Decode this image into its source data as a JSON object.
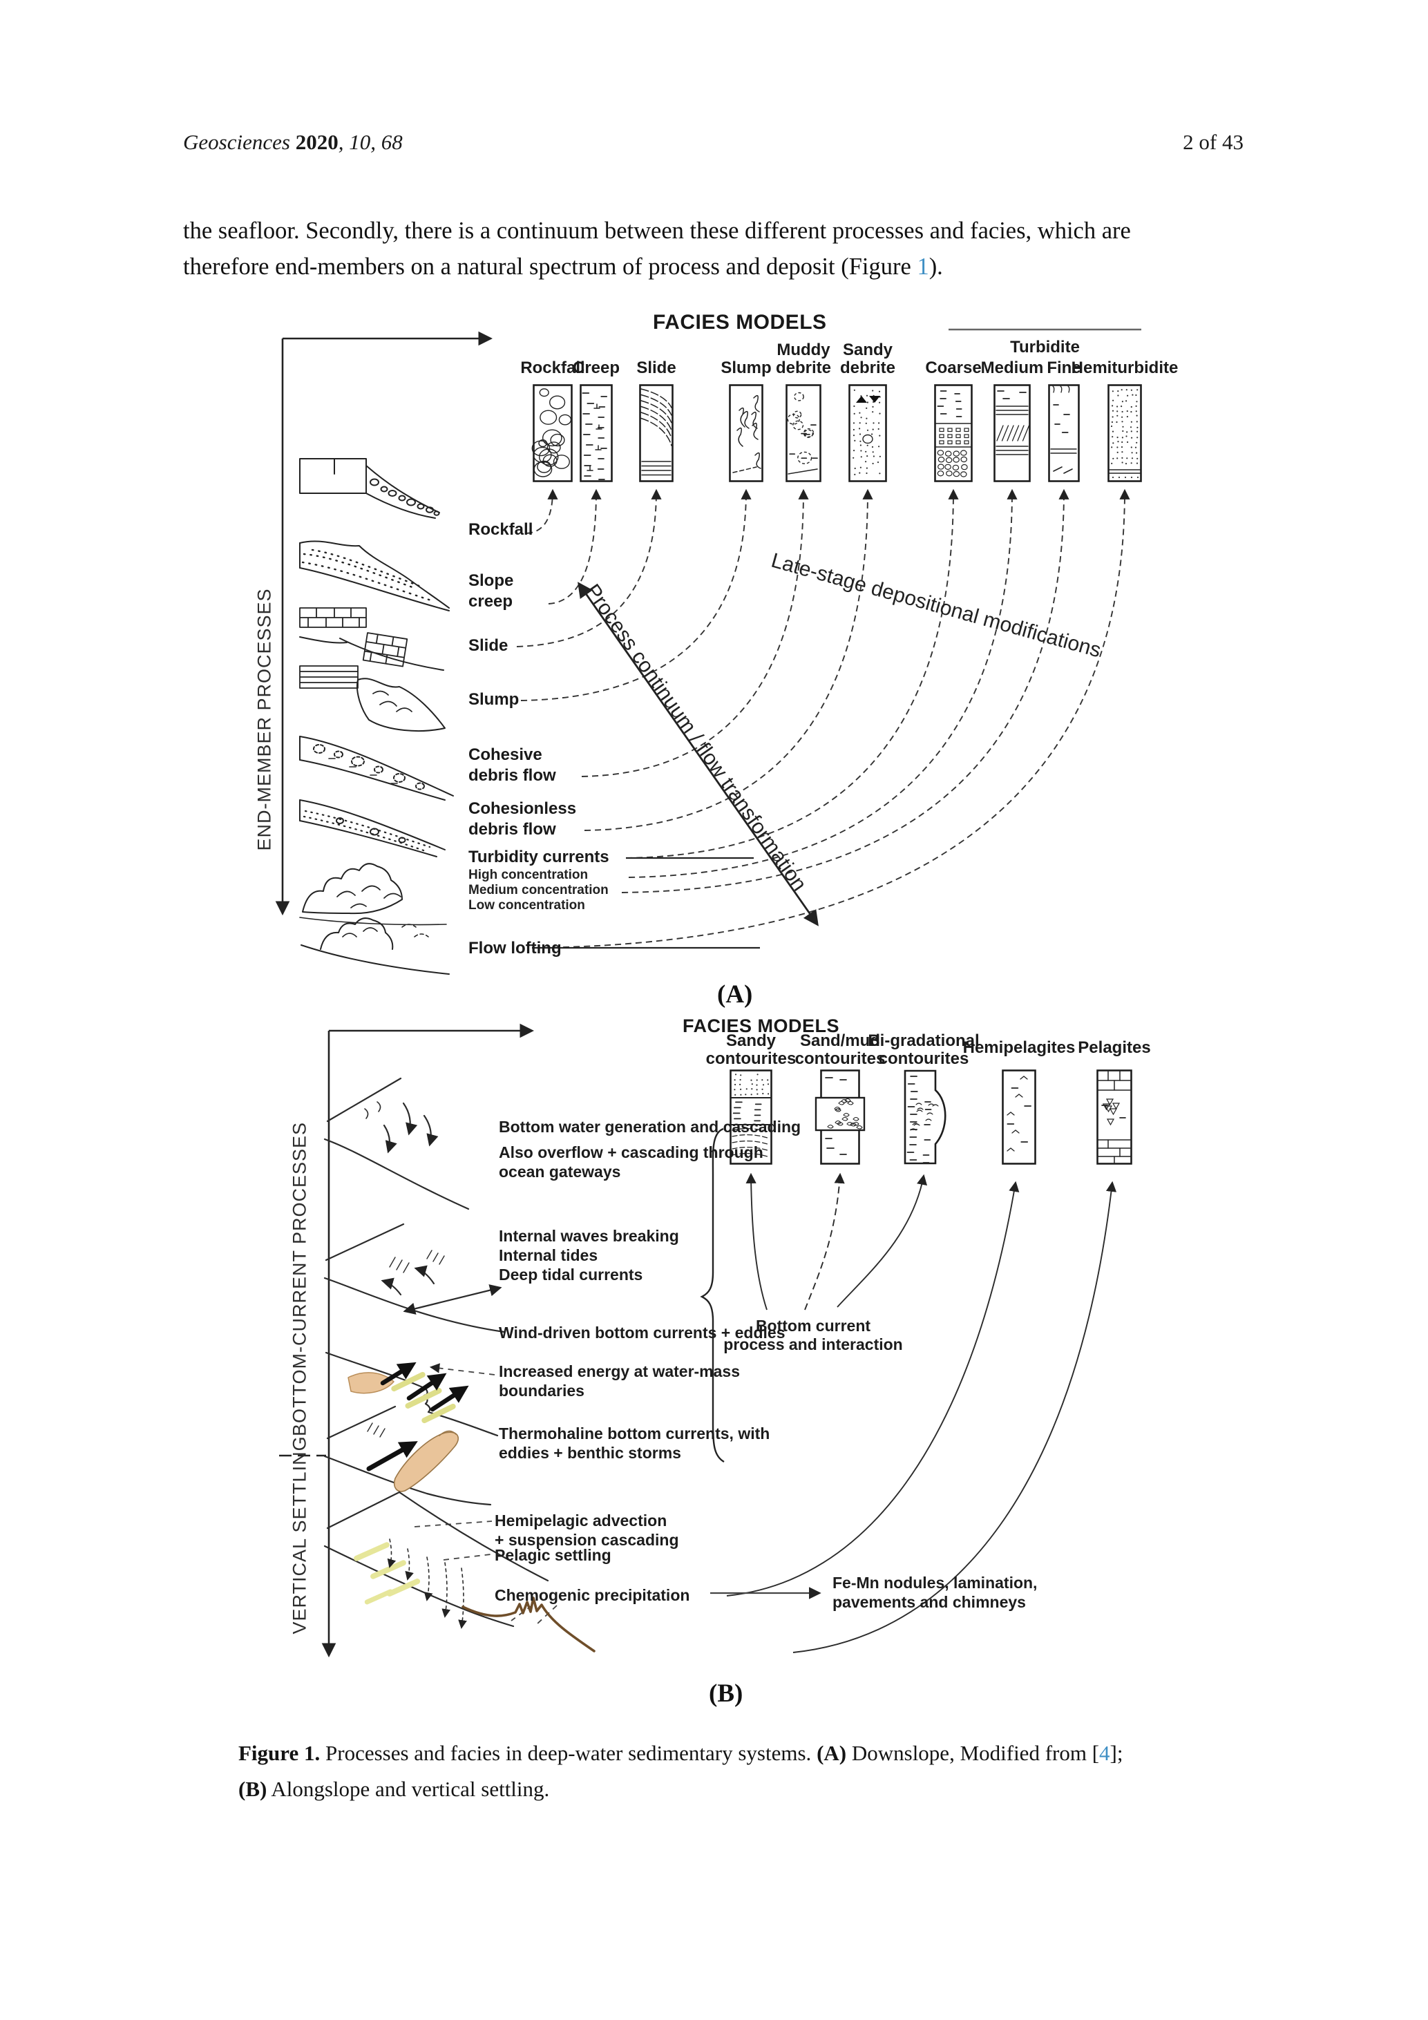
{
  "page": {
    "header": {
      "journal": "Geosciences",
      "year": "2020",
      "volume_issue": ", 10, 68",
      "page_info": "2 of 43"
    },
    "intro": {
      "line1": "the seafloor. Secondly, there is a continuum between these different processes and facies, which are",
      "line2_pre": "therefore end-members on a natural spectrum of process and deposit (Figure ",
      "figure_ref": "1",
      "line2_post": ")."
    },
    "caption": {
      "label": "Figure 1.",
      "text_1": " Processes and facies in deep-water sedimentary systems. ",
      "bold_a": "(A)",
      "text_2": " Downslope, Modified from [",
      "ref": "4",
      "text_3": "];",
      "bold_b": "(B)",
      "line2_post": " Alongslope and vertical settling."
    },
    "colors": {
      "link_blue": "#3f8fc4",
      "drift_tan": "#e9c49a",
      "streak_yellow": "#dede8a",
      "seafloor_brown": "#6f4e2a"
    }
  },
  "figure_a": {
    "title": "FACIES MODELS",
    "axis_label": "END-MEMBER PROCESSES",
    "panel_letter": "(A)",
    "turbidite_group": "Turbidite",
    "diagonal_label": "Process continuum / flow transformation",
    "late_stage_label": "Late-stage depositional modifications",
    "columns": [
      {
        "label": [
          "Rockfall"
        ],
        "texture": "cobbles"
      },
      {
        "label": [
          "Creep"
        ],
        "texture": "creep"
      },
      {
        "label": [
          "Slide"
        ],
        "texture": "slide"
      },
      {
        "label": [
          "Slump"
        ],
        "texture": "slump"
      },
      {
        "label": [
          "Muddy",
          "debrite"
        ],
        "texture": "muddy"
      },
      {
        "label": [
          "Sandy",
          "debrite"
        ],
        "texture": "sandy"
      },
      {
        "label": [
          "Coarse"
        ],
        "texture": "coarse"
      },
      {
        "label": [
          "Medium"
        ],
        "texture": "medium"
      },
      {
        "label": [
          "Fine"
        ],
        "texture": "fine"
      },
      {
        "label": [
          "Hemiturbidite"
        ],
        "texture": "hemi"
      }
    ],
    "processes": [
      {
        "lines": [
          "Rockfall"
        ]
      },
      {
        "lines": [
          "Slope",
          "creep"
        ]
      },
      {
        "lines": [
          "Slide"
        ]
      },
      {
        "lines": [
          "Slump"
        ]
      },
      {
        "lines": [
          "Cohesive",
          "debris flow"
        ]
      },
      {
        "lines": [
          "Cohesionless",
          "debris flow"
        ]
      },
      {
        "lines": [
          "Turbidity currents"
        ],
        "sublabels": [
          "High concentration",
          "Medium concentration",
          "Low concentration"
        ]
      },
      {
        "lines": [
          "Flow lofting"
        ]
      }
    ]
  },
  "figure_b": {
    "title": "FACIES MODELS",
    "axis_label_top": "BOTTOM-CURRENT PROCESSES",
    "axis_label_bottom": "VERTICAL SETTLING",
    "panel_letter": "(B)",
    "columns": [
      {
        "label": [
          "Sandy",
          "contourites"
        ],
        "texture": "sandycont"
      },
      {
        "label": [
          "Sand/mud",
          "contourites"
        ],
        "texture": "sandmud"
      },
      {
        "label": [
          "Bi-gradational",
          "contourites"
        ],
        "texture": "bigrad"
      },
      {
        "label": [
          "Hemipelagites"
        ],
        "texture": "hemipel"
      },
      {
        "label": [
          "Pelagites"
        ],
        "texture": "pelag"
      }
    ],
    "processes": [
      {
        "lines": [
          "Bottom water generation and cascading"
        ]
      },
      {
        "lines": [
          "Also overflow + cascading through",
          "ocean gateways"
        ]
      },
      {
        "lines": [
          "Internal waves breaking",
          "Internal tides"
        ]
      },
      {
        "lines": [
          "Deep tidal currents"
        ]
      },
      {
        "lines": [
          "Wind-driven bottom currents + eddies"
        ]
      },
      {
        "lines": [
          "Increased energy at water-mass",
          "boundaries"
        ]
      },
      {
        "lines": [
          "Thermohaline bottom currents, with",
          "eddies + benthic storms"
        ]
      },
      {
        "lines": [
          "Hemipelagic advection",
          "+ suspension cascading"
        ]
      },
      {
        "lines": [
          "Pelagic settling"
        ]
      },
      {
        "lines": [
          "Chemogenic precipitation"
        ]
      }
    ],
    "interaction_label": [
      "Bottom current",
      "process and interaction"
    ],
    "femn_label": [
      "Fe-Mn nodules, lamination,",
      "pavements and chimneys"
    ]
  }
}
